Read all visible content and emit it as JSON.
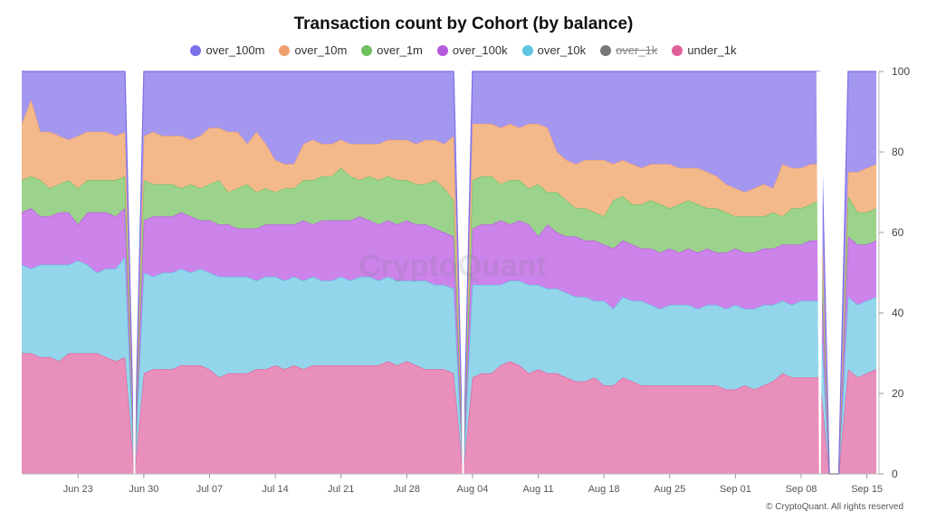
{
  "chart_data": {
    "type": "area",
    "stacked": "percent",
    "title": "Transaction count by Cohort (by balance)",
    "xlabel": "",
    "ylabel": "",
    "ylim": [
      0,
      100
    ],
    "yticks": [
      0,
      20,
      40,
      60,
      80,
      100
    ],
    "x_tick_labels": [
      "Jun 23",
      "Jun 30",
      "Jul 07",
      "Jul 14",
      "Jul 21",
      "Jul 28",
      "Aug 04",
      "Aug 11",
      "Aug 18",
      "Aug 25",
      "Sep 01",
      "Sep 08",
      "Sep 15"
    ],
    "legend_position": "top-center",
    "x": [
      "Jun 17",
      "Jun 18",
      "Jun 19",
      "Jun 20",
      "Jun 21",
      "Jun 22",
      "Jun 23",
      "Jun 24",
      "Jun 25",
      "Jun 26",
      "Jun 27",
      "Jun 28",
      "Jun 29",
      "Jun 30",
      "Jul 01",
      "Jul 02",
      "Jul 03",
      "Jul 04",
      "Jul 05",
      "Jul 06",
      "Jul 07",
      "Jul 08",
      "Jul 09",
      "Jul 10",
      "Jul 11",
      "Jul 12",
      "Jul 13",
      "Jul 14",
      "Jul 15",
      "Jul 16",
      "Jul 17",
      "Jul 18",
      "Jul 19",
      "Jul 20",
      "Jul 21",
      "Jul 22",
      "Jul 23",
      "Jul 24",
      "Jul 25",
      "Jul 26",
      "Jul 27",
      "Jul 28",
      "Jul 29",
      "Jul 30",
      "Jul 31",
      "Aug 01",
      "Aug 02",
      "Aug 03",
      "Aug 04",
      "Aug 05",
      "Aug 06",
      "Aug 07",
      "Aug 08",
      "Aug 09",
      "Aug 10",
      "Aug 11",
      "Aug 12",
      "Aug 13",
      "Aug 14",
      "Aug 15",
      "Aug 16",
      "Aug 17",
      "Aug 18",
      "Aug 19",
      "Aug 20",
      "Aug 21",
      "Aug 22",
      "Aug 23",
      "Aug 24",
      "Aug 25",
      "Aug 26",
      "Aug 27",
      "Aug 28",
      "Aug 29",
      "Aug 30",
      "Aug 31",
      "Sep 01",
      "Sep 02",
      "Sep 03",
      "Sep 04",
      "Sep 05",
      "Sep 06",
      "Sep 07",
      "Sep 08",
      "Sep 09",
      "Sep 10",
      "Sep 11",
      "Sep 12",
      "Sep 13",
      "Sep 14",
      "Sep 15",
      "Sep 16"
    ],
    "gaps": [
      12,
      47,
      85
    ],
    "cumulative_boundaries": {
      "under_1k": [
        30,
        30,
        29,
        29,
        28,
        30,
        30,
        30,
        30,
        29,
        28,
        29,
        0,
        25,
        26,
        26,
        26,
        27,
        27,
        27,
        26,
        24,
        25,
        25,
        25,
        26,
        26,
        27,
        26,
        27,
        26,
        27,
        27,
        27,
        27,
        27,
        27,
        27,
        27,
        28,
        27,
        28,
        27,
        26,
        26,
        26,
        25,
        0,
        24,
        25,
        25,
        27,
        28,
        27,
        25,
        26,
        25,
        25,
        24,
        23,
        23,
        24,
        22,
        22,
        24,
        23,
        22,
        22,
        22,
        22,
        22,
        22,
        22,
        22,
        22,
        21,
        21,
        22,
        21,
        22,
        23,
        25,
        24,
        24,
        24,
        24,
        0,
        0,
        26,
        24,
        25,
        26,
        27
      ],
      "over_10k": [
        52,
        51,
        52,
        52,
        52,
        52,
        53,
        52,
        50,
        51,
        51,
        54,
        0,
        50,
        49,
        50,
        50,
        51,
        50,
        51,
        50,
        49,
        49,
        49,
        49,
        48,
        49,
        49,
        48,
        49,
        48,
        49,
        48,
        48,
        49,
        48,
        49,
        49,
        48,
        49,
        48,
        48,
        48,
        48,
        47,
        47,
        46,
        0,
        47,
        47,
        47,
        47,
        48,
        48,
        47,
        47,
        46,
        46,
        45,
        44,
        44,
        43,
        43,
        41,
        44,
        43,
        43,
        42,
        41,
        42,
        42,
        42,
        41,
        42,
        42,
        41,
        42,
        41,
        41,
        42,
        42,
        43,
        42,
        43,
        43,
        43,
        0,
        0,
        44,
        42,
        43,
        44,
        44
      ],
      "over_100k": [
        65,
        66,
        64,
        64,
        65,
        65,
        62,
        65,
        65,
        65,
        64,
        66,
        0,
        63,
        64,
        64,
        64,
        65,
        64,
        63,
        63,
        62,
        62,
        61,
        61,
        61,
        62,
        62,
        62,
        62,
        63,
        62,
        63,
        63,
        63,
        63,
        64,
        63,
        62,
        63,
        62,
        63,
        62,
        62,
        61,
        60,
        59,
        0,
        61,
        62,
        62,
        63,
        62,
        63,
        62,
        59,
        62,
        60,
        59,
        59,
        58,
        58,
        57,
        56,
        58,
        57,
        56,
        56,
        55,
        56,
        55,
        56,
        55,
        56,
        55,
        55,
        56,
        55,
        55,
        56,
        56,
        57,
        57,
        57,
        58,
        58,
        0,
        0,
        59,
        57,
        57,
        58,
        57
      ],
      "over_1m": [
        73,
        74,
        73,
        71,
        72,
        73,
        71,
        73,
        73,
        73,
        73,
        74,
        0,
        73,
        72,
        72,
        72,
        71,
        72,
        71,
        72,
        73,
        70,
        71,
        72,
        70,
        71,
        70,
        71,
        71,
        73,
        73,
        74,
        74,
        76,
        74,
        73,
        74,
        73,
        74,
        73,
        73,
        72,
        72,
        73,
        71,
        68,
        0,
        73,
        74,
        74,
        72,
        73,
        73,
        71,
        72,
        70,
        70,
        68,
        66,
        66,
        65,
        64,
        68,
        69,
        67,
        67,
        68,
        67,
        66,
        67,
        68,
        67,
        66,
        66,
        65,
        64,
        64,
        64,
        64,
        65,
        64,
        66,
        66,
        67,
        68,
        0,
        0,
        69,
        65,
        65,
        66,
        67
      ],
      "over_10m": [
        87,
        93,
        85,
        85,
        84,
        83,
        84,
        85,
        85,
        85,
        84,
        85,
        0,
        84,
        85,
        84,
        84,
        84,
        83,
        84,
        86,
        86,
        85,
        85,
        82,
        85,
        82,
        78,
        77,
        77,
        82,
        83,
        82,
        82,
        83,
        82,
        82,
        82,
        82,
        83,
        83,
        83,
        82,
        83,
        83,
        82,
        84,
        0,
        87,
        87,
        87,
        86,
        87,
        86,
        87,
        87,
        86,
        80,
        78,
        77,
        78,
        78,
        78,
        77,
        78,
        77,
        76,
        77,
        77,
        77,
        76,
        76,
        76,
        75,
        74,
        72,
        71,
        70,
        71,
        72,
        71,
        77,
        76,
        76,
        77,
        77,
        0,
        0,
        75,
        75,
        76,
        77,
        77
      ],
      "over_100m": [
        100,
        100,
        100,
        100,
        100,
        100,
        100,
        100,
        100,
        100,
        100,
        100,
        0,
        100,
        100,
        100,
        100,
        100,
        100,
        100,
        100,
        100,
        100,
        100,
        100,
        100,
        100,
        100,
        100,
        100,
        100,
        100,
        100,
        100,
        100,
        100,
        100,
        100,
        100,
        100,
        100,
        100,
        100,
        100,
        100,
        100,
        100,
        0,
        100,
        100,
        100,
        100,
        100,
        100,
        100,
        100,
        100,
        100,
        100,
        100,
        100,
        100,
        100,
        100,
        100,
        100,
        100,
        100,
        100,
        100,
        100,
        100,
        100,
        100,
        100,
        100,
        100,
        100,
        100,
        100,
        100,
        100,
        100,
        100,
        100,
        100,
        0,
        0,
        100,
        100,
        100,
        100,
        100
      ]
    },
    "series": [
      {
        "name": "over_100m",
        "color": "#7b6fe8",
        "fill": "#a397f0",
        "visible": true
      },
      {
        "name": "over_10m",
        "color": "#f0a070",
        "fill": "#f4b98b",
        "visible": true
      },
      {
        "name": "over_1m",
        "color": "#6fbf5f",
        "fill": "#9bd38c",
        "visible": true
      },
      {
        "name": "over_100k",
        "color": "#b45bdc",
        "fill": "#cc83ea",
        "visible": true
      },
      {
        "name": "over_10k",
        "color": "#5ec4e2",
        "fill": "#93d6eb",
        "visible": true
      },
      {
        "name": "over_1k",
        "color": "#777777",
        "fill": "#999999",
        "visible": false
      },
      {
        "name": "under_1k",
        "color": "#e0609a",
        "fill": "#e98fbb",
        "visible": true
      }
    ]
  },
  "watermark": "CryptoQuant",
  "credit": "© CryptoQuant. All rights reserved"
}
